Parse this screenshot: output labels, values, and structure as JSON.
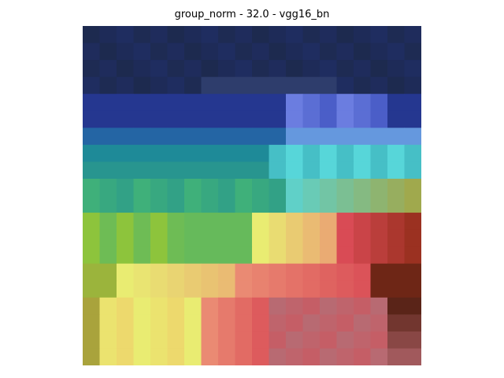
{
  "title": "group_norm - 32.0 - vgg16_bn",
  "image": {
    "description_icon": "heatmap-image",
    "palette": {
      "navy": "#1d2a4f",
      "dark_blue": "#22317a",
      "royal_blue": "#2a3fb0",
      "periwinkle": "#6b7de0",
      "teal": "#1e8a98",
      "cyan": "#57d6d9",
      "green": "#3fb07a",
      "lime": "#8dc43c",
      "yellow": "#e9ec72",
      "olive": "#a9a33c",
      "salmon": "#ea8a73",
      "red": "#d94b55",
      "dark_red": "#8c2a14",
      "brown": "#5a2418",
      "mauve": "#b86a72"
    }
  }
}
